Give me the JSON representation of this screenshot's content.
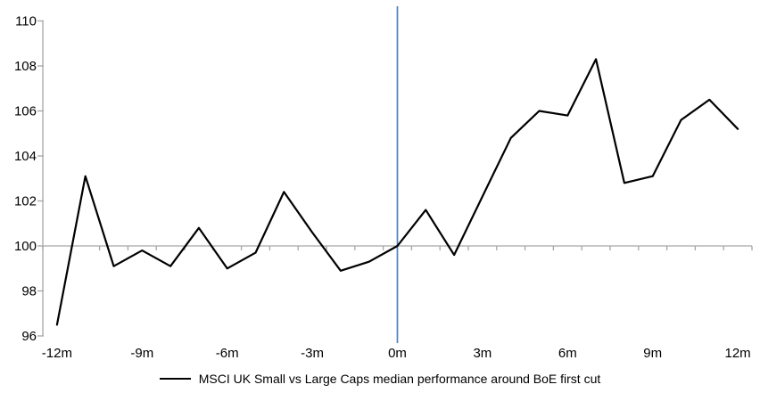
{
  "chart_data": {
    "type": "line",
    "title": "",
    "x": [
      -12,
      -11,
      -10,
      -9,
      -8,
      -7,
      -6,
      -5,
      -4,
      -3,
      -2,
      -1,
      0,
      1,
      2,
      3,
      4,
      5,
      6,
      7,
      8,
      9,
      10,
      11,
      12
    ],
    "series": [
      {
        "name": "MSCI UK Small vs Large Caps median performance around BoE first cut",
        "values": [
          96.5,
          103.1,
          99.1,
          99.8,
          99.1,
          100.8,
          99.0,
          99.7,
          102.4,
          100.6,
          98.9,
          99.3,
          100.0,
          101.6,
          99.6,
          102.2,
          104.8,
          106.0,
          105.8,
          108.3,
          102.8,
          103.1,
          105.6,
          106.5,
          105.2
        ],
        "color": "#000000"
      }
    ],
    "xlabel": "",
    "ylabel": "",
    "ylim": [
      96,
      110
    ],
    "yticks": [
      "96",
      "98",
      "100",
      "102",
      "104",
      "106",
      "108",
      "110"
    ],
    "ytick_values": [
      96,
      98,
      100,
      102,
      104,
      106,
      108,
      110
    ],
    "xtick_labels": [
      "-12m",
      "-9m",
      "-6m",
      "-3m",
      "0m",
      "3m",
      "6m",
      "9m",
      "12m"
    ],
    "xtick_months": [
      -12,
      -9,
      -6,
      -3,
      0,
      3,
      6,
      9,
      12
    ],
    "x_axis_crosses_at_y": 100,
    "event_line": {
      "month": 0,
      "color": "#4f81bd"
    },
    "axis_color": "#a6a6a6",
    "grid": "off",
    "legend_position": "bottom"
  }
}
